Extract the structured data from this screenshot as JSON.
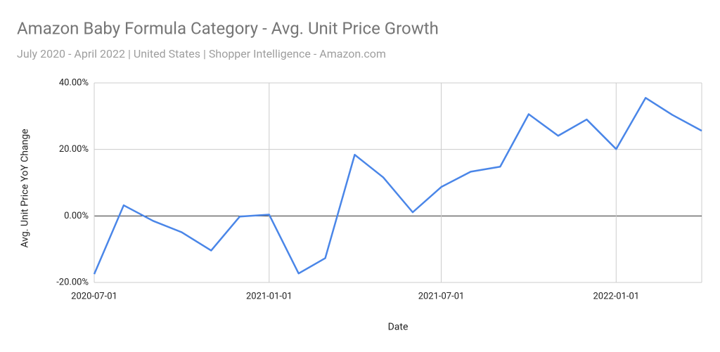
{
  "chart_data": {
    "type": "line",
    "title": "Amazon Baby Formula Category - Avg. Unit Price Growth",
    "subtitle": "July 2020 - April 2022 | United States | Shopper Intelligence  - Amazon.com",
    "x_label": "Date",
    "y_label": "Avg. Unit Price YoY Change",
    "x": [
      "2020-07-01",
      "2020-08-01",
      "2020-09-01",
      "2020-10-01",
      "2020-11-01",
      "2020-12-01",
      "2021-01-01",
      "2021-02-01",
      "2021-03-01",
      "2021-04-01",
      "2021-05-01",
      "2021-06-01",
      "2021-07-01",
      "2021-08-01",
      "2021-09-01",
      "2021-10-01",
      "2021-11-01",
      "2021-12-01",
      "2022-01-01",
      "2022-02-01",
      "2022-03-01",
      "2022-04-01"
    ],
    "series": [
      {
        "name": "Avg. Unit Price YoY Change",
        "color": "#4a86e8",
        "values": [
          -17.5,
          3.2,
          -1.5,
          -4.9,
          -10.4,
          -0.2,
          0.4,
          -17.3,
          -12.7,
          18.4,
          11.6,
          1.1,
          8.7,
          13.3,
          14.8,
          30.6,
          24.1,
          29.0,
          20.1,
          35.5,
          30.4,
          25.6
        ]
      }
    ],
    "xlim": [
      "2020-07-01",
      "2022-04-01"
    ],
    "xticks": [
      "2020-07-01",
      "2021-01-01",
      "2021-07-01",
      "2022-01-01"
    ],
    "ylim": [
      -20,
      40
    ],
    "yticks": [
      {
        "value": -20,
        "label": "-20.00%"
      },
      {
        "value": 0,
        "label": "0.00%"
      },
      {
        "value": 20,
        "label": "20.00%"
      },
      {
        "value": 40,
        "label": "40.00%"
      }
    ],
    "grid": true,
    "legend": false
  }
}
